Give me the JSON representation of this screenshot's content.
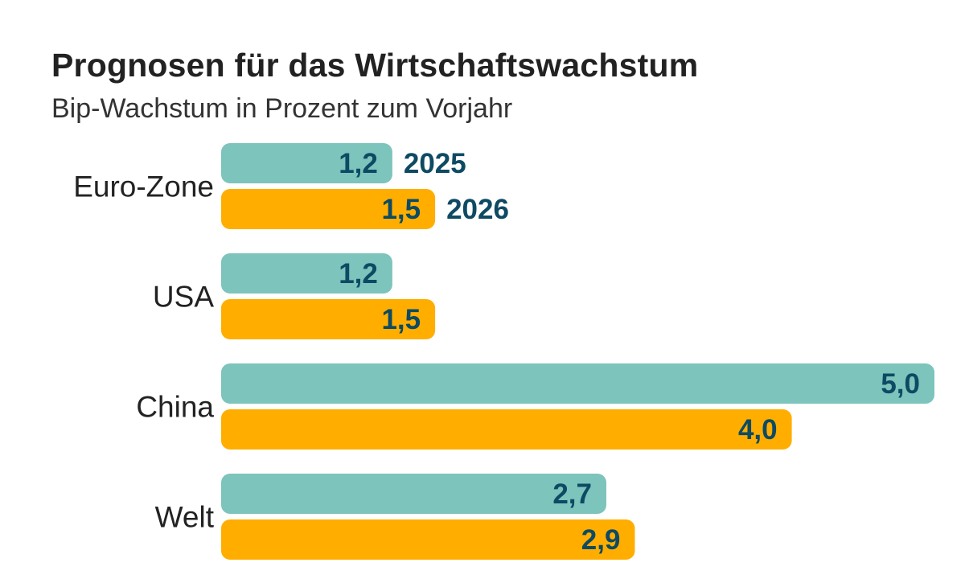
{
  "chart_data": {
    "type": "bar",
    "orientation": "horizontal",
    "title": "Prognosen für das Wirtschaftswachstum",
    "subtitle": "Bip-Wachstum in Prozent zum Vorjahr",
    "categories": [
      "Euro-Zone",
      "USA",
      "China",
      "Welt"
    ],
    "series": [
      {
        "name": "2025",
        "color": "#7cc4bc",
        "values": [
          1.2,
          1.2,
          5.0,
          2.7
        ],
        "labels": [
          "1,2",
          "1,2",
          "5,0",
          "2,7"
        ]
      },
      {
        "name": "2026",
        "color": "#ffae00",
        "values": [
          1.5,
          1.5,
          4.0,
          2.9
        ],
        "labels": [
          "1,5",
          "1,5",
          "4,0",
          "2,9"
        ]
      }
    ],
    "xlim": [
      0,
      5.0
    ],
    "grid": false,
    "legend": "inline next to first category bars"
  }
}
